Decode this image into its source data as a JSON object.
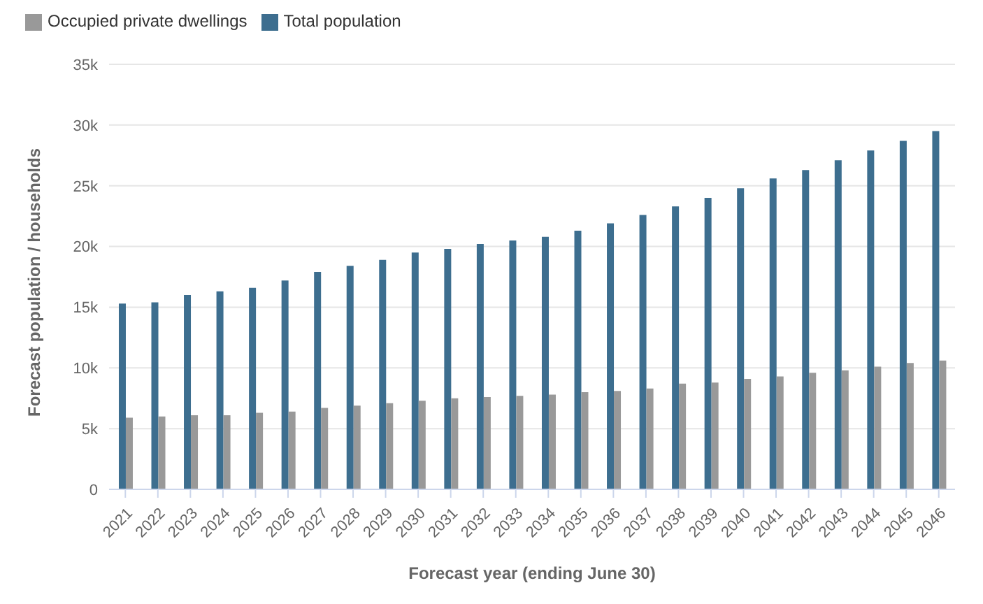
{
  "chart_data": {
    "type": "bar",
    "xlabel": "Forecast year (ending June 30)",
    "ylabel": "Forecast population / households",
    "categories": [
      "2021",
      "2022",
      "2023",
      "2024",
      "2025",
      "2026",
      "2027",
      "2028",
      "2029",
      "2030",
      "2031",
      "2032",
      "2033",
      "2034",
      "2035",
      "2036",
      "2037",
      "2038",
      "2039",
      "2040",
      "2041",
      "2042",
      "2043",
      "2044",
      "2045",
      "2046"
    ],
    "series": [
      {
        "name": "Total population",
        "color": "#3d6e8f",
        "values": [
          15300,
          15400,
          16000,
          16300,
          16600,
          17200,
          17900,
          18400,
          18900,
          19500,
          19800,
          20200,
          20500,
          20800,
          21300,
          21900,
          22600,
          23300,
          24000,
          24800,
          25600,
          26300,
          27100,
          27900,
          28700,
          29500
        ]
      },
      {
        "name": "Occupied private dwellings",
        "color": "#999999",
        "values": [
          5900,
          6000,
          6100,
          6100,
          6300,
          6400,
          6700,
          6900,
          7100,
          7300,
          7500,
          7600,
          7700,
          7800,
          8000,
          8100,
          8300,
          8700,
          8800,
          9100,
          9300,
          9600,
          9800,
          10100,
          10400,
          10600
        ]
      }
    ],
    "ylim": [
      0,
      35000
    ],
    "yticks": [
      {
        "value": 0,
        "label": "0"
      },
      {
        "value": 5000,
        "label": "5k"
      },
      {
        "value": 10000,
        "label": "10k"
      },
      {
        "value": 15000,
        "label": "15k"
      },
      {
        "value": 20000,
        "label": "20k"
      },
      {
        "value": 25000,
        "label": "25k"
      },
      {
        "value": 30000,
        "label": "30k"
      },
      {
        "value": 35000,
        "label": "35k"
      }
    ],
    "grid": "y",
    "legend": "top left"
  }
}
